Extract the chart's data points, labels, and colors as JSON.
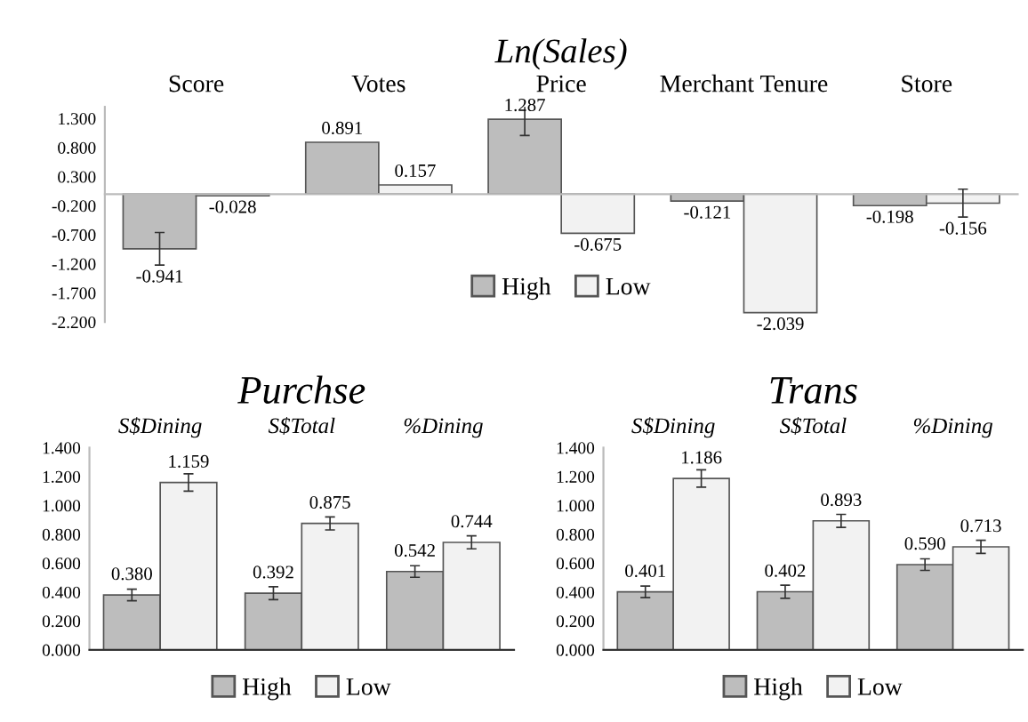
{
  "chart_data": [
    {
      "type": "bar",
      "title": "Ln(Sales)",
      "categories": [
        "Score",
        "Votes",
        "Price",
        "Merchant Tenure",
        "Store"
      ],
      "series": [
        {
          "name": "High",
          "color": "#bdbdbd",
          "values": [
            -0.941,
            0.891,
            1.287,
            -0.121,
            -0.198
          ],
          "value_labels": [
            "-0.941",
            "0.891",
            "1.287",
            "-0.121",
            "-0.198"
          ],
          "errors": [
            0.28,
            null,
            0.28,
            null,
            null
          ]
        },
        {
          "name": "Low",
          "color": "#f2f2f2",
          "values": [
            -0.028,
            0.157,
            -0.675,
            -2.039,
            -0.156
          ],
          "value_labels": [
            "-0.028",
            "0.157",
            "-0.675",
            "-2.039",
            "-0.156"
          ],
          "errors": [
            null,
            null,
            null,
            null,
            0.24
          ]
        }
      ],
      "ylim": [
        -2.2,
        1.5
      ],
      "yticks": [
        {
          "value": 1.3,
          "label": "1.300"
        },
        {
          "value": 0.8,
          "label": "0.800"
        },
        {
          "value": 0.3,
          "label": "0.300"
        },
        {
          "value": -0.2,
          "label": "-0.200"
        },
        {
          "value": -0.7,
          "label": "-0.700"
        },
        {
          "value": -1.2,
          "label": "-1.200"
        },
        {
          "value": -1.7,
          "label": "-1.700"
        },
        {
          "value": -2.2,
          "label": "-2.200"
        }
      ],
      "legend": "bottom center",
      "grid": false
    },
    {
      "type": "bar",
      "title": "Purchse",
      "categories": [
        "S$Dining",
        "S$Total",
        "%Dining"
      ],
      "series": [
        {
          "name": "High",
          "color": "#bdbdbd",
          "values": [
            0.38,
            0.392,
            0.542
          ],
          "value_labels": [
            "0.380",
            "0.392",
            "0.542"
          ],
          "errors": [
            0.04,
            0.045,
            0.04
          ]
        },
        {
          "name": "Low",
          "color": "#f2f2f2",
          "values": [
            1.159,
            0.875,
            0.744
          ],
          "value_labels": [
            "1.159",
            "0.875",
            "0.744"
          ],
          "errors": [
            0.06,
            0.045,
            0.045
          ]
        }
      ],
      "ylim": [
        0,
        1.4
      ],
      "yticks": [
        {
          "value": 0,
          "label": "0.000"
        },
        {
          "value": 0.2,
          "label": "0.200"
        },
        {
          "value": 0.4,
          "label": "0.400"
        },
        {
          "value": 0.6,
          "label": "0.600"
        },
        {
          "value": 0.8,
          "label": "0.800"
        },
        {
          "value": 1.0,
          "label": "1.000"
        },
        {
          "value": 1.2,
          "label": "1.200"
        },
        {
          "value": 1.4,
          "label": "1.400"
        }
      ],
      "legend": "bottom",
      "grid": false
    },
    {
      "type": "bar",
      "title": "Trans",
      "categories": [
        "S$Dining",
        "S$Total",
        "%Dining"
      ],
      "series": [
        {
          "name": "High",
          "color": "#bdbdbd",
          "values": [
            0.401,
            0.402,
            0.59
          ],
          "value_labels": [
            "0.401",
            "0.402",
            "0.590"
          ],
          "errors": [
            0.04,
            0.045,
            0.04
          ]
        },
        {
          "name": "Low",
          "color": "#f2f2f2",
          "values": [
            1.186,
            0.893,
            0.713
          ],
          "value_labels": [
            "1.186",
            "0.893",
            "0.713"
          ],
          "errors": [
            0.06,
            0.045,
            0.045
          ]
        }
      ],
      "ylim": [
        0,
        1.4
      ],
      "yticks": [
        {
          "value": 0,
          "label": "0.000"
        },
        {
          "value": 0.2,
          "label": "0.200"
        },
        {
          "value": 0.4,
          "label": "0.400"
        },
        {
          "value": 0.6,
          "label": "0.600"
        },
        {
          "value": 0.8,
          "label": "0.800"
        },
        {
          "value": 1.0,
          "label": "1.000"
        },
        {
          "value": 1.2,
          "label": "1.200"
        },
        {
          "value": 1.4,
          "label": "1.400"
        }
      ],
      "legend": "bottom",
      "grid": false
    }
  ]
}
